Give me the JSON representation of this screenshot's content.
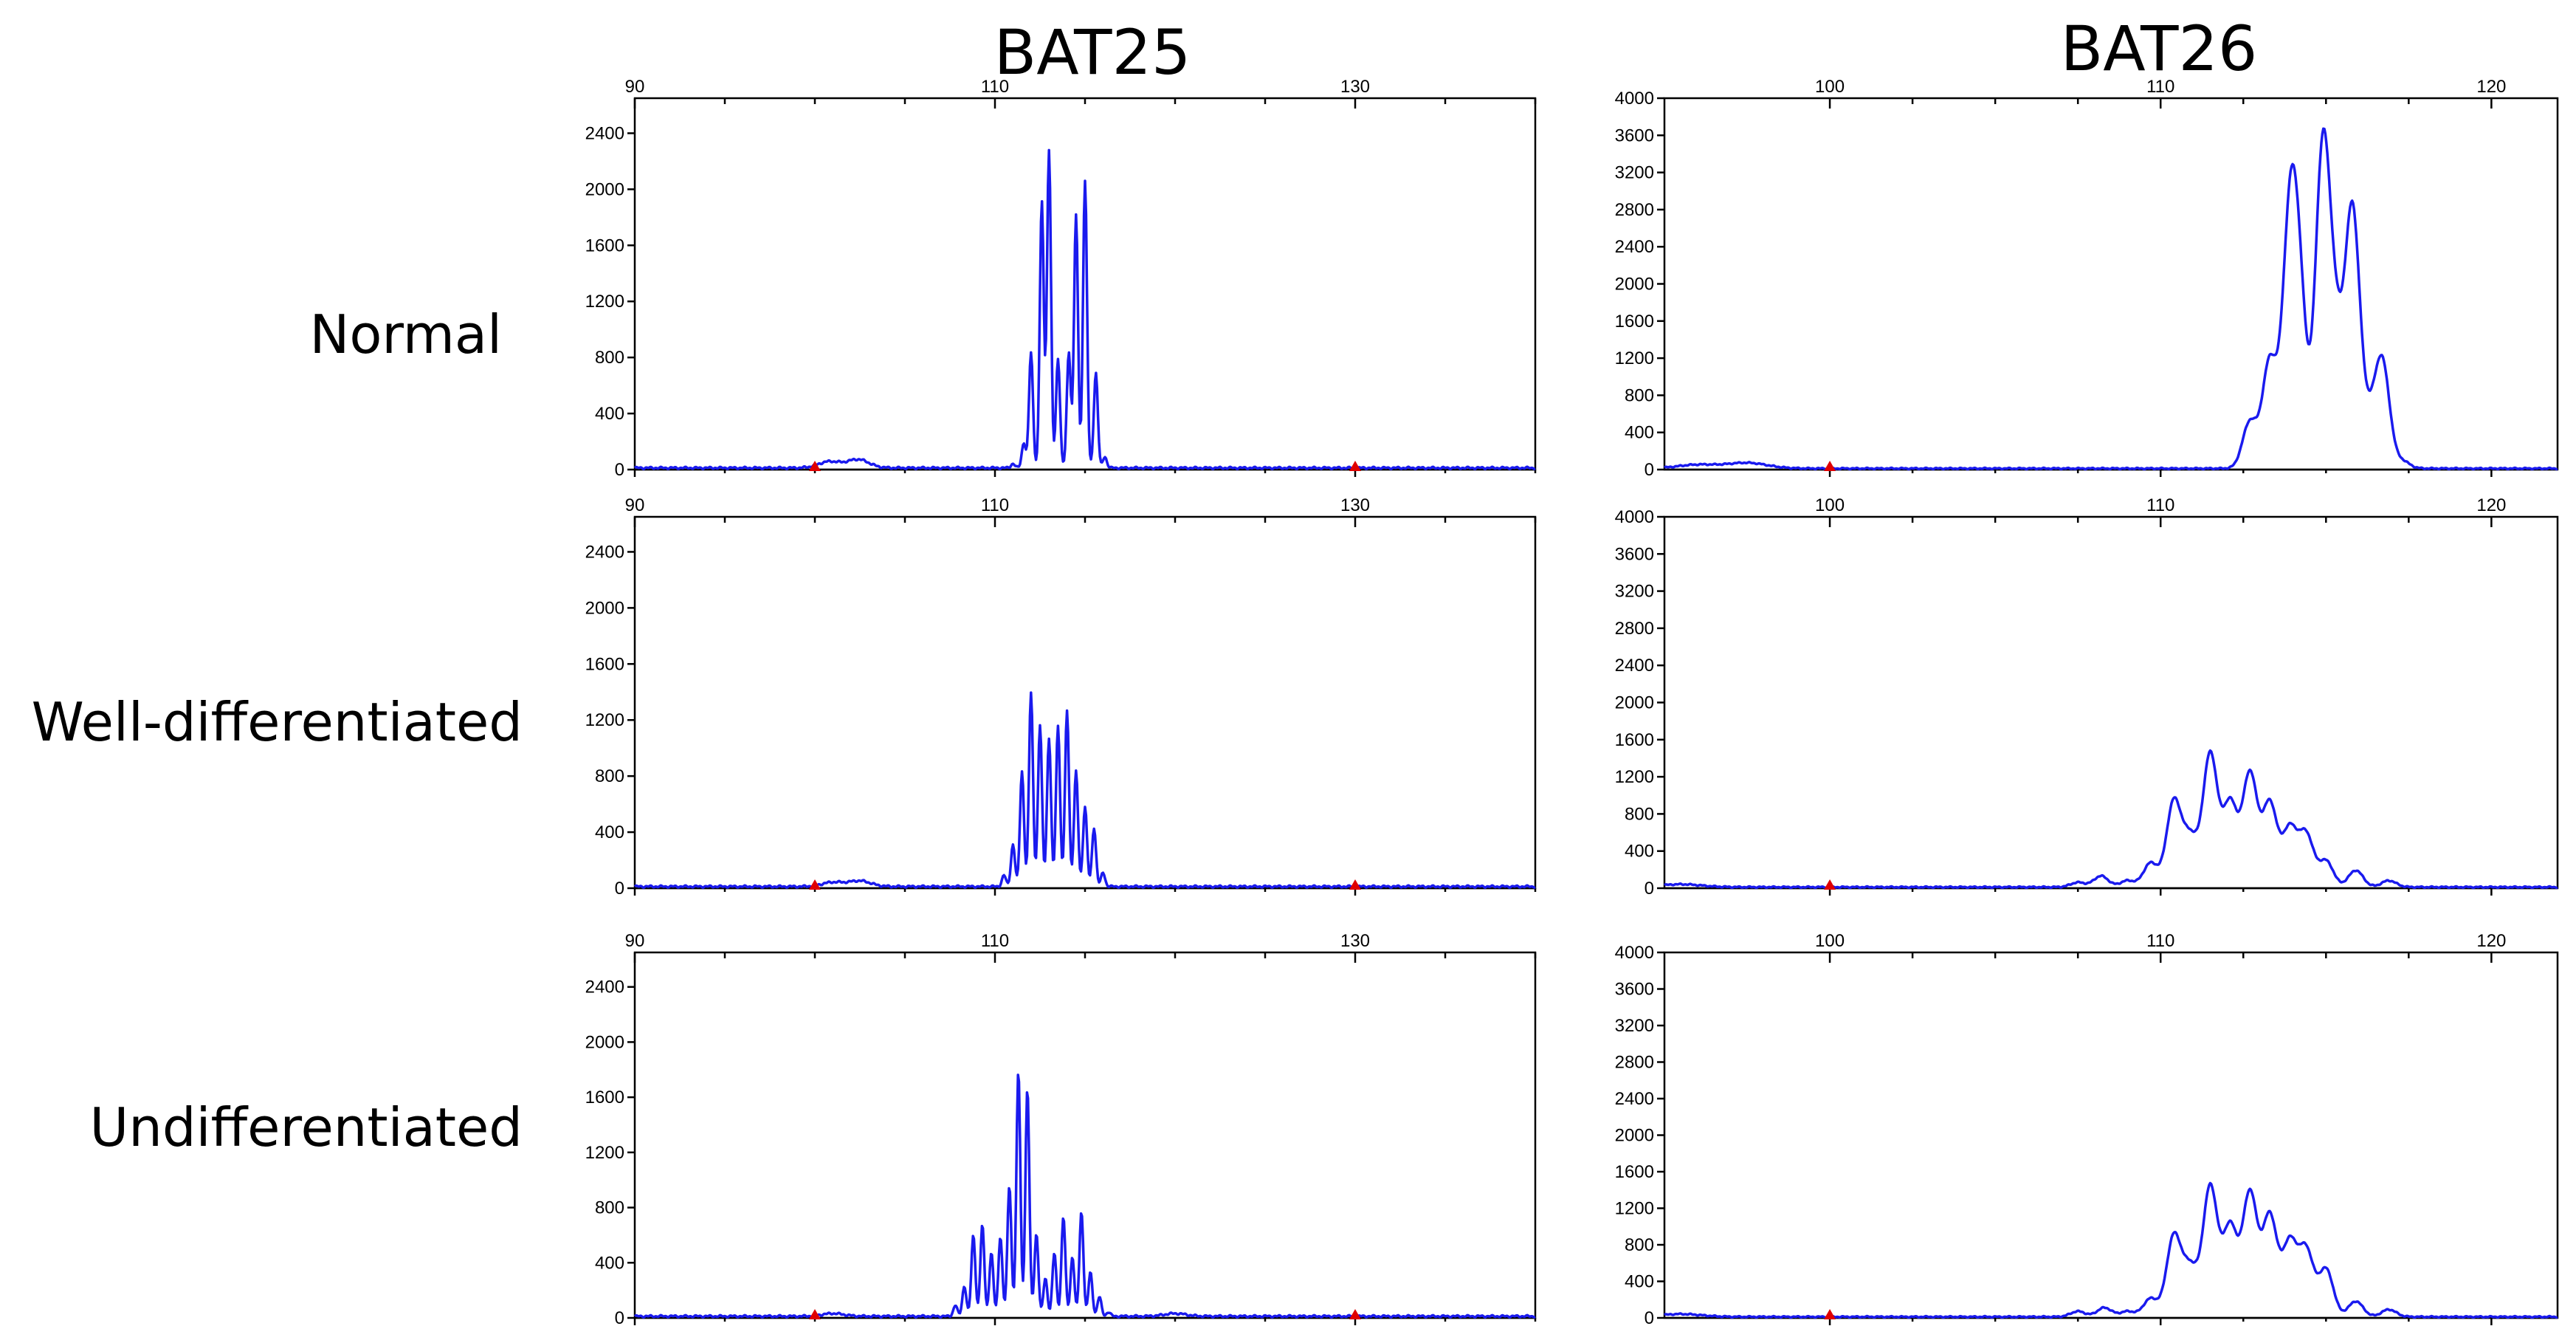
{
  "columns": [
    "BAT25",
    "BAT26"
  ],
  "rows": [
    "Normal",
    "Well-differentiated",
    "Undifferentiated"
  ],
  "colors": {
    "trace": "#1a1aee",
    "marker": "#e00000",
    "axis": "#000000"
  },
  "chart_data": [
    {
      "type": "line",
      "marker": "BAT25",
      "sample": "Normal",
      "xlim": [
        90,
        140
      ],
      "ylim": [
        0,
        2650
      ],
      "xticks": [
        90,
        110,
        130
      ],
      "yticks": [
        0,
        400,
        800,
        1200,
        1600,
        2000,
        2400
      ],
      "marker_positions": [
        100,
        130
      ],
      "peaks": [
        [
          111.0,
          30
        ],
        [
          111.6,
          180
        ],
        [
          112.0,
          820
        ],
        [
          112.6,
          1900
        ],
        [
          113.0,
          2270
        ],
        [
          113.5,
          780
        ],
        [
          114.1,
          830
        ],
        [
          114.5,
          1800
        ],
        [
          115.0,
          2050
        ],
        [
          115.6,
          680
        ],
        [
          116.1,
          80
        ]
      ],
      "bumps": [
        [
          100.8,
          45
        ],
        [
          102.4,
          60
        ]
      ],
      "series": [
        {
          "values": "peaks"
        }
      ]
    },
    {
      "type": "line",
      "marker": "BAT26",
      "sample": "Normal",
      "xlim": [
        95,
        122
      ],
      "ylim": [
        0,
        4000
      ],
      "xticks": [
        100,
        110,
        120
      ],
      "yticks": [
        0,
        400,
        800,
        1200,
        1600,
        2000,
        2400,
        2800,
        3200,
        3600,
        4000
      ],
      "marker_positions": [
        100
      ],
      "peaks": [
        [
          112.7,
          500
        ],
        [
          113.3,
          1150
        ],
        [
          113.9,
          2450
        ],
        [
          114.2,
          1600
        ],
        [
          114.9,
          3380
        ],
        [
          115.3,
          1250
        ],
        [
          115.8,
          2750
        ],
        [
          116.3,
          420
        ],
        [
          116.7,
          1130
        ],
        [
          117.3,
          80
        ]
      ],
      "bumps": [
        [
          96.0,
          40
        ],
        [
          97.5,
          60
        ]
      ],
      "series": [
        {
          "values": "peaks"
        }
      ]
    },
    {
      "type": "line",
      "marker": "BAT25",
      "sample": "Well-differentiated",
      "xlim": [
        90,
        140
      ],
      "ylim": [
        0,
        2650
      ],
      "xticks": [
        90,
        110,
        130
      ],
      "yticks": [
        0,
        400,
        800,
        1200,
        1600,
        2000,
        2400
      ],
      "marker_positions": [
        100,
        130
      ],
      "peaks": [
        [
          110.5,
          80
        ],
        [
          111.0,
          300
        ],
        [
          111.5,
          820
        ],
        [
          112.0,
          1380
        ],
        [
          112.5,
          1150
        ],
        [
          113.0,
          1060
        ],
        [
          113.5,
          1150
        ],
        [
          114.0,
          1250
        ],
        [
          114.5,
          820
        ],
        [
          115.0,
          570
        ],
        [
          115.5,
          420
        ],
        [
          116.0,
          100
        ]
      ],
      "bumps": [
        [
          101.0,
          30
        ],
        [
          102.5,
          40
        ]
      ],
      "series": [
        {
          "values": "peaks"
        }
      ]
    },
    {
      "type": "line",
      "marker": "BAT26",
      "sample": "Well-differentiated",
      "xlim": [
        95,
        122
      ],
      "ylim": [
        0,
        4000
      ],
      "xticks": [
        100,
        110,
        120
      ],
      "yticks": [
        0,
        400,
        800,
        1200,
        1600,
        2000,
        2400,
        2800,
        3200,
        3600,
        4000
      ],
      "marker_positions": [
        100
      ],
      "peaks": [
        [
          107.5,
          50
        ],
        [
          108.2,
          120
        ],
        [
          109.0,
          70
        ],
        [
          109.7,
          260
        ],
        [
          110.4,
          920
        ],
        [
          110.9,
          520
        ],
        [
          111.5,
          1430
        ],
        [
          112.1,
          900
        ],
        [
          112.7,
          1220
        ],
        [
          113.3,
          900
        ],
        [
          113.9,
          620
        ],
        [
          114.4,
          560
        ],
        [
          115.0,
          280
        ],
        [
          115.9,
          180
        ],
        [
          116.9,
          70
        ]
      ],
      "bumps": [
        [
          95.5,
          30
        ]
      ],
      "series": [
        {
          "values": "peaks"
        }
      ]
    },
    {
      "type": "line",
      "marker": "BAT25",
      "sample": "Undifferentiated",
      "xlim": [
        90,
        140
      ],
      "ylim": [
        0,
        2650
      ],
      "xticks": [
        90,
        110,
        130
      ],
      "yticks": [
        0,
        400,
        800,
        1200,
        1600,
        2000,
        2400
      ],
      "marker_positions": [
        100,
        130
      ],
      "peaks": [
        [
          107.8,
          80
        ],
        [
          108.3,
          220
        ],
        [
          108.8,
          590
        ],
        [
          109.3,
          660
        ],
        [
          109.8,
          460
        ],
        [
          110.3,
          580
        ],
        [
          110.8,
          950
        ],
        [
          111.3,
          1780
        ],
        [
          111.8,
          1650
        ],
        [
          112.3,
          600
        ],
        [
          112.8,
          280
        ],
        [
          113.3,
          460
        ],
        [
          113.8,
          720
        ],
        [
          114.3,
          430
        ],
        [
          114.8,
          760
        ],
        [
          115.3,
          320
        ],
        [
          115.8,
          140
        ],
        [
          116.3,
          30
        ]
      ],
      "bumps": [
        [
          101.0,
          20
        ],
        [
          120.0,
          20
        ]
      ],
      "series": [
        {
          "values": "peaks"
        }
      ]
    },
    {
      "type": "line",
      "marker": "BAT26",
      "sample": "Undifferentiated",
      "xlim": [
        95,
        122
      ],
      "ylim": [
        0,
        4000
      ],
      "xticks": [
        100,
        110,
        120
      ],
      "yticks": [
        0,
        400,
        800,
        1200,
        1600,
        2000,
        2400,
        2800,
        3200,
        3600,
        4000
      ],
      "marker_positions": [
        100
      ],
      "peaks": [
        [
          107.5,
          60
        ],
        [
          108.3,
          100
        ],
        [
          109.0,
          60
        ],
        [
          109.7,
          200
        ],
        [
          110.4,
          880
        ],
        [
          110.9,
          520
        ],
        [
          111.5,
          1420
        ],
        [
          112.1,
          980
        ],
        [
          112.7,
          1350
        ],
        [
          113.3,
          1100
        ],
        [
          113.9,
          800
        ],
        [
          114.4,
          720
        ],
        [
          115.0,
          520
        ],
        [
          115.9,
          170
        ],
        [
          116.9,
          80
        ]
      ],
      "bumps": [
        [
          95.5,
          30
        ]
      ],
      "series": [
        {
          "values": "peaks"
        }
      ]
    }
  ]
}
